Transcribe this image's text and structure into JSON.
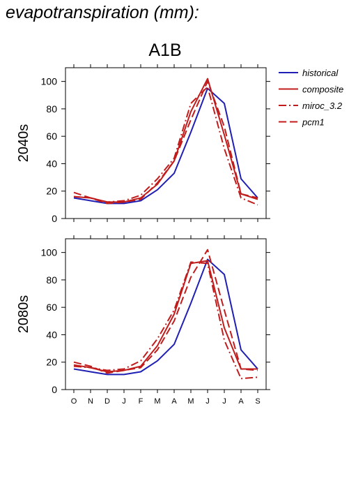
{
  "page_title": "evapotranspiration (mm):",
  "scenario": "A1B",
  "legend": [
    {
      "name": "historical",
      "color": "#1f1fb4",
      "dash": "solid"
    },
    {
      "name": "composite",
      "color": "#c01c1c",
      "dash": "solid"
    },
    {
      "name": "miroc_3.2",
      "color": "#c01c1c",
      "dash": "dashdot"
    },
    {
      "name": "pcm1",
      "color": "#c01c1c",
      "dash": "dashed"
    }
  ],
  "chart_data": [
    {
      "type": "line",
      "title": "A1B",
      "ylabel": "2040s",
      "xlabel": "",
      "categories": [
        "O",
        "N",
        "D",
        "J",
        "F",
        "M",
        "A",
        "M",
        "J",
        "J",
        "A",
        "S"
      ],
      "ylim": [
        0,
        110
      ],
      "yticks": [
        0,
        20,
        40,
        60,
        80,
        100
      ],
      "series": [
        {
          "name": "historical",
          "values": [
            15,
            13,
            11,
            11,
            13,
            21,
            33,
            63,
            95,
            84,
            29,
            15
          ]
        },
        {
          "name": "composite",
          "values": [
            16,
            15,
            12,
            12,
            15,
            25,
            42,
            78,
            102,
            61,
            18,
            14
          ]
        },
        {
          "name": "miroc_3.2",
          "values": [
            16,
            15,
            12,
            13,
            17,
            29,
            44,
            84,
            96,
            51,
            15,
            10
          ]
        },
        {
          "name": "pcm1",
          "values": [
            19,
            15,
            11,
            12,
            14,
            26,
            42,
            72,
            100,
            67,
            18,
            15
          ]
        }
      ]
    },
    {
      "type": "line",
      "title": "",
      "ylabel": "2080s",
      "xlabel": "",
      "categories": [
        "O",
        "N",
        "D",
        "J",
        "F",
        "M",
        "A",
        "M",
        "J",
        "J",
        "A",
        "S"
      ],
      "ylim": [
        0,
        110
      ],
      "yticks": [
        0,
        20,
        40,
        60,
        80,
        100
      ],
      "series": [
        {
          "name": "historical",
          "values": [
            15,
            13,
            11,
            11,
            13,
            21,
            33,
            63,
            95,
            84,
            29,
            15
          ]
        },
        {
          "name": "composite",
          "values": [
            18,
            16,
            13,
            14,
            17,
            32,
            55,
            92,
            94,
            45,
            15,
            15
          ]
        },
        {
          "name": "miroc_3.2",
          "values": [
            17,
            16,
            14,
            15,
            21,
            37,
            58,
            93,
            92,
            36,
            8,
            9
          ]
        },
        {
          "name": "pcm1",
          "values": [
            20,
            17,
            12,
            14,
            16,
            29,
            50,
            82,
            102,
            58,
            15,
            14
          ]
        }
      ]
    }
  ]
}
